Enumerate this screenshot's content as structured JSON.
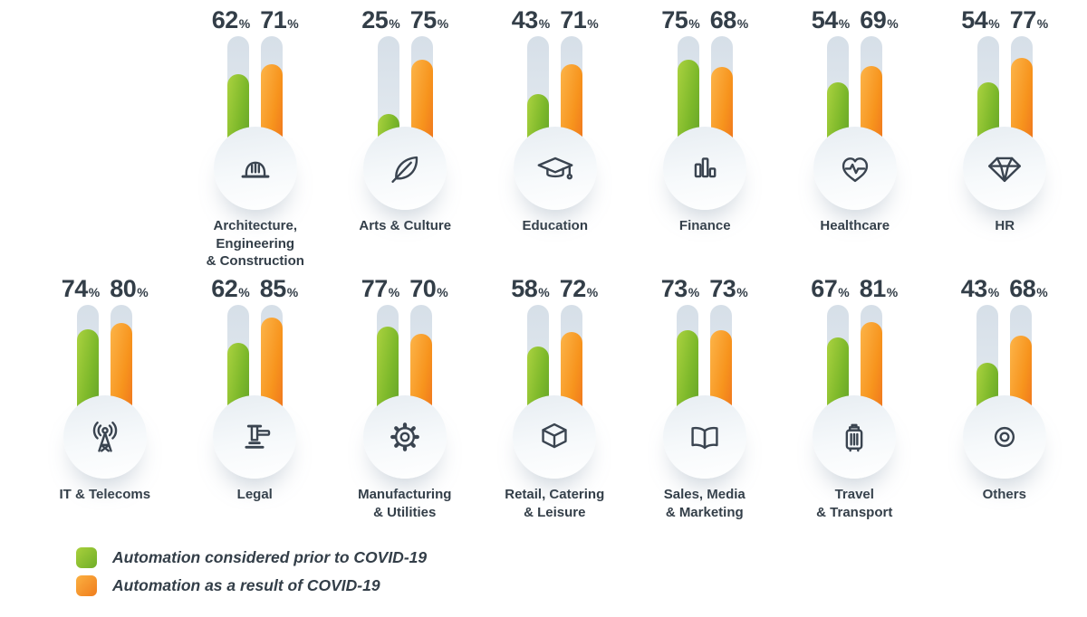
{
  "colors": {
    "prior_green": "#7cb82a",
    "result_orange": "#f7941d",
    "track": "#dde5ec",
    "text": "#333e48"
  },
  "chart_data": {
    "type": "bar",
    "title": "",
    "unit": "%",
    "ylim": [
      0,
      100
    ],
    "grid": false,
    "legend_position": "bottom-left",
    "series": [
      {
        "name": "Automation considered prior to COVID-19",
        "color": "#7cb82a"
      },
      {
        "name": "Automation as a result of COVID-19",
        "color": "#f7941d"
      }
    ],
    "rows": [
      {
        "categories": [
          {
            "id": "architecture-engineering-construction",
            "label": "Architecture, Engineering & Construction",
            "label_lines": [
              "Architecture, Engineering",
              "& Construction"
            ],
            "icon": "hard-hat-icon",
            "values": [
              62,
              71
            ]
          },
          {
            "id": "arts-culture",
            "label": "Arts & Culture",
            "label_lines": [
              "Arts & Culture"
            ],
            "icon": "feather-icon",
            "values": [
              25,
              75
            ]
          },
          {
            "id": "education",
            "label": "Education",
            "label_lines": [
              "Education"
            ],
            "icon": "graduation-cap-icon",
            "values": [
              43,
              71
            ]
          },
          {
            "id": "finance",
            "label": "Finance",
            "label_lines": [
              "Finance"
            ],
            "icon": "bar-chart-icon",
            "values": [
              75,
              68
            ]
          },
          {
            "id": "healthcare",
            "label": "Healthcare",
            "label_lines": [
              "Healthcare"
            ],
            "icon": "heart-pulse-icon",
            "values": [
              54,
              69
            ]
          },
          {
            "id": "hr",
            "label": "HR",
            "label_lines": [
              "HR"
            ],
            "icon": "diamond-icon",
            "values": [
              54,
              77
            ]
          }
        ]
      },
      {
        "categories": [
          {
            "id": "it-telecoms",
            "label": "IT & Telecoms",
            "label_lines": [
              "IT & Telecoms"
            ],
            "icon": "antenna-icon",
            "values": [
              74,
              80
            ]
          },
          {
            "id": "legal",
            "label": "Legal",
            "label_lines": [
              "Legal"
            ],
            "icon": "gavel-icon",
            "values": [
              62,
              85
            ]
          },
          {
            "id": "manufacturing-utilities",
            "label": "Manufacturing & Utilities",
            "label_lines": [
              "Manufacturing",
              "& Utilities"
            ],
            "icon": "gear-icon",
            "values": [
              77,
              70
            ]
          },
          {
            "id": "retail-catering-leisure",
            "label": "Retail, Catering & Leisure",
            "label_lines": [
              "Retail, Catering",
              "& Leisure"
            ],
            "icon": "box-icon",
            "values": [
              58,
              72
            ]
          },
          {
            "id": "sales-media-marketing",
            "label": "Sales, Media & Marketing",
            "label_lines": [
              "Sales, Media",
              "& Marketing"
            ],
            "icon": "open-book-icon",
            "values": [
              73,
              73
            ]
          },
          {
            "id": "travel-transport",
            "label": "Travel & Transport",
            "label_lines": [
              "Travel",
              "& Transport"
            ],
            "icon": "suitcase-icon",
            "values": [
              67,
              81
            ]
          },
          {
            "id": "others",
            "label": "Others",
            "label_lines": [
              "Others"
            ],
            "icon": "target-icon",
            "values": [
              43,
              68
            ]
          }
        ]
      }
    ]
  }
}
